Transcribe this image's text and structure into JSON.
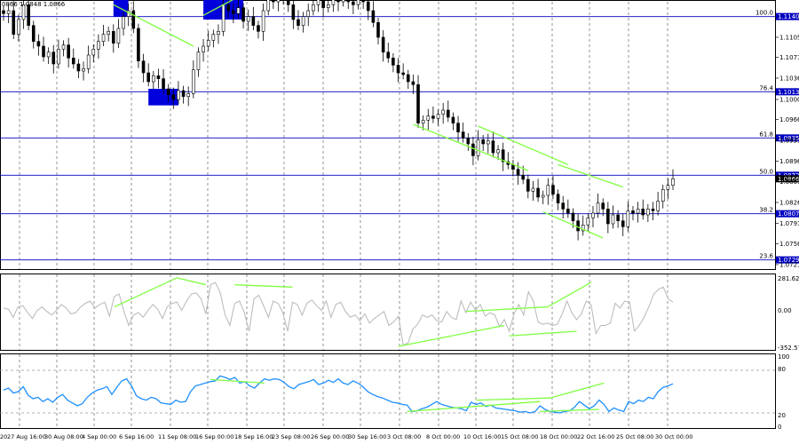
{
  "header": {
    "symbol_text": "0866 1.0848 1.0866"
  },
  "price_axis_labels": [
    "1.1105",
    "1.1071",
    "1.1036",
    "1.1000",
    "1.0966",
    "1.0931",
    "1.0896",
    "1.0861",
    "1.0826",
    "1.0791",
    "1.0756",
    "1.0721"
  ],
  "fib_levels": [
    {
      "pct": "100.0",
      "price": "1.1140"
    },
    {
      "pct": "76.4",
      "price": "1.1013"
    },
    {
      "pct": "61.8",
      "price": "1.0935"
    },
    {
      "pct": "50.0",
      "price": "1.0872"
    },
    {
      "pct": "38.2",
      "price": "1.0807"
    },
    {
      "pct": "23.6",
      "price": "1.0729"
    }
  ],
  "current_price": "1.0866",
  "cci_labels": {
    "top": "281.6237",
    "zero": "0.00",
    "bottom": "-352.570"
  },
  "rsi_labels": {
    "l100": "100",
    "l80": "80",
    "l20": "20",
    "l0": "0"
  },
  "time_labels": [
    "20",
    "27 Aug 16:00",
    "30 Aug 08:00",
    "4 Sep 00:00",
    "6 Sep 16:00",
    "11 Sep 08:00",
    "16 Sep 00:00",
    "18 Sep 16:00",
    "23 Sep 08:00",
    "26 Sep 00:00",
    "30 Sep 16:00",
    "3 Oct 08:00",
    "8 Oct 00:00",
    "10 Oct 16:00",
    "15 Oct 08:00",
    "18 Oct 00:00",
    "22 Oct 16:00",
    "25 Oct 08:00",
    "30 Oct 00:00"
  ],
  "colors": {
    "fib": "#0000c0",
    "candle": "#000000",
    "cci": "#bdbdbd",
    "rsi": "#1e90ff",
    "trend": "#80ff40",
    "box": "#0000dd"
  },
  "chart_data": {
    "type": "candlestick",
    "title": "",
    "ylim": [
      1.0715,
      1.1165
    ],
    "close": [
      1.1145,
      1.115,
      1.111,
      1.1135,
      1.116,
      1.1125,
      1.1098,
      1.109,
      1.1072,
      1.108,
      1.106,
      1.1085,
      1.1092,
      1.107,
      1.106,
      1.1048,
      1.1052,
      1.1075,
      1.1085,
      1.1098,
      1.111,
      1.1115,
      1.1095,
      1.112,
      1.114,
      1.115,
      1.112,
      1.1065,
      1.1045,
      1.103,
      1.104,
      1.1035,
      1.1018,
      1.1008,
      1.1,
      1.1015,
      1.1005,
      1.101,
      1.105,
      1.108,
      1.109,
      1.11,
      1.111,
      1.1115,
      1.116,
      1.115,
      1.1145,
      1.1155,
      1.1132,
      1.114,
      1.1125,
      1.1115,
      1.115,
      1.117,
      1.1165,
      1.1172,
      1.1168,
      1.116,
      1.1135,
      1.1125,
      1.114,
      1.115,
      1.116,
      1.1172,
      1.1155,
      1.116,
      1.117,
      1.1165,
      1.1178,
      1.1165,
      1.116,
      1.1172,
      1.1165,
      1.115,
      1.113,
      1.1105,
      1.108,
      1.107,
      1.1058,
      1.1045,
      1.1042,
      1.103,
      1.1025,
      1.096,
      1.0965,
      1.0972,
      1.0968,
      1.0975,
      1.0982,
      1.097,
      1.096,
      1.0945,
      1.0935,
      1.0925,
      1.0905,
      1.0932,
      1.0925,
      1.093,
      1.091,
      1.0915,
      1.0895,
      1.089,
      1.0882,
      1.0872,
      1.0865,
      1.0845,
      1.085,
      1.0835,
      1.0838,
      1.0855,
      1.084,
      1.0825,
      1.0815,
      1.0808,
      1.0795,
      1.0778,
      1.0788,
      1.08,
      1.0808,
      1.0825,
      1.0815,
      1.079,
      1.0805,
      1.0795,
      1.0785,
      1.0812,
      1.0808,
      1.0815,
      1.0805,
      1.0815,
      1.0812,
      1.0828,
      1.0848,
      1.0855,
      1.0866
    ],
    "cci": [
      0,
      -10,
      -80,
      10,
      20,
      -40,
      -90,
      -20,
      10,
      -30,
      -60,
      -20,
      30,
      0,
      -50,
      -40,
      10,
      40,
      60,
      0,
      30,
      50,
      -70,
      100,
      120,
      -30,
      -150,
      -60,
      -40,
      -80,
      -20,
      30,
      -10,
      -90,
      10,
      40,
      50,
      -20,
      60,
      120,
      130,
      80,
      -50,
      200,
      220,
      130,
      -60,
      -150,
      40,
      60,
      -40,
      -200,
      80,
      110,
      20,
      -80,
      60,
      40,
      -40,
      -200,
      50,
      30,
      -60,
      40,
      70,
      20,
      -20,
      60,
      -80,
      30,
      50,
      -30,
      -80,
      -60,
      -110,
      -50,
      -130,
      -90,
      -60,
      -30,
      -150,
      -120,
      -70,
      -320,
      -300,
      -180,
      -140,
      -60,
      -80,
      -60,
      -110,
      -120,
      -30,
      -80,
      -100,
      60,
      -40,
      50,
      -20,
      30,
      -70,
      -40,
      -60,
      -160,
      -100,
      -200,
      -50,
      30,
      -60,
      140,
      60,
      -120,
      -140,
      -130,
      -150,
      -140,
      -50,
      60,
      -40,
      -100,
      -50,
      60,
      30,
      -220,
      -150,
      -150,
      -130,
      40,
      0,
      60,
      50,
      -200,
      -150,
      -80,
      10,
      120,
      160,
      180,
      80,
      50
    ],
    "rsi": [
      52,
      55,
      48,
      50,
      57,
      45,
      40,
      42,
      36,
      40,
      35,
      42,
      46,
      38,
      34,
      30,
      33,
      42,
      48,
      52,
      54,
      57,
      46,
      56,
      65,
      68,
      58,
      44,
      40,
      38,
      42,
      40,
      34,
      33,
      32,
      38,
      35,
      36,
      50,
      58,
      60,
      62,
      64,
      65,
      72,
      70,
      67,
      70,
      62,
      64,
      58,
      55,
      62,
      68,
      66,
      68,
      67,
      63,
      57,
      54,
      60,
      62,
      64,
      67,
      60,
      62,
      66,
      63,
      68,
      62,
      60,
      65,
      62,
      57,
      50,
      46,
      43,
      41,
      38,
      35,
      34,
      32,
      31,
      22,
      23,
      26,
      28,
      32,
      36,
      32,
      30,
      28,
      27,
      26,
      23,
      35,
      32,
      34,
      29,
      31,
      27,
      26,
      25,
      24,
      23,
      21,
      22,
      20,
      22,
      30,
      25,
      22,
      21,
      20,
      22,
      23,
      28,
      36,
      31,
      26,
      30,
      38,
      32,
      22,
      27,
      24,
      22,
      36,
      33,
      38,
      36,
      42,
      40,
      50,
      56,
      58,
      61
    ]
  }
}
